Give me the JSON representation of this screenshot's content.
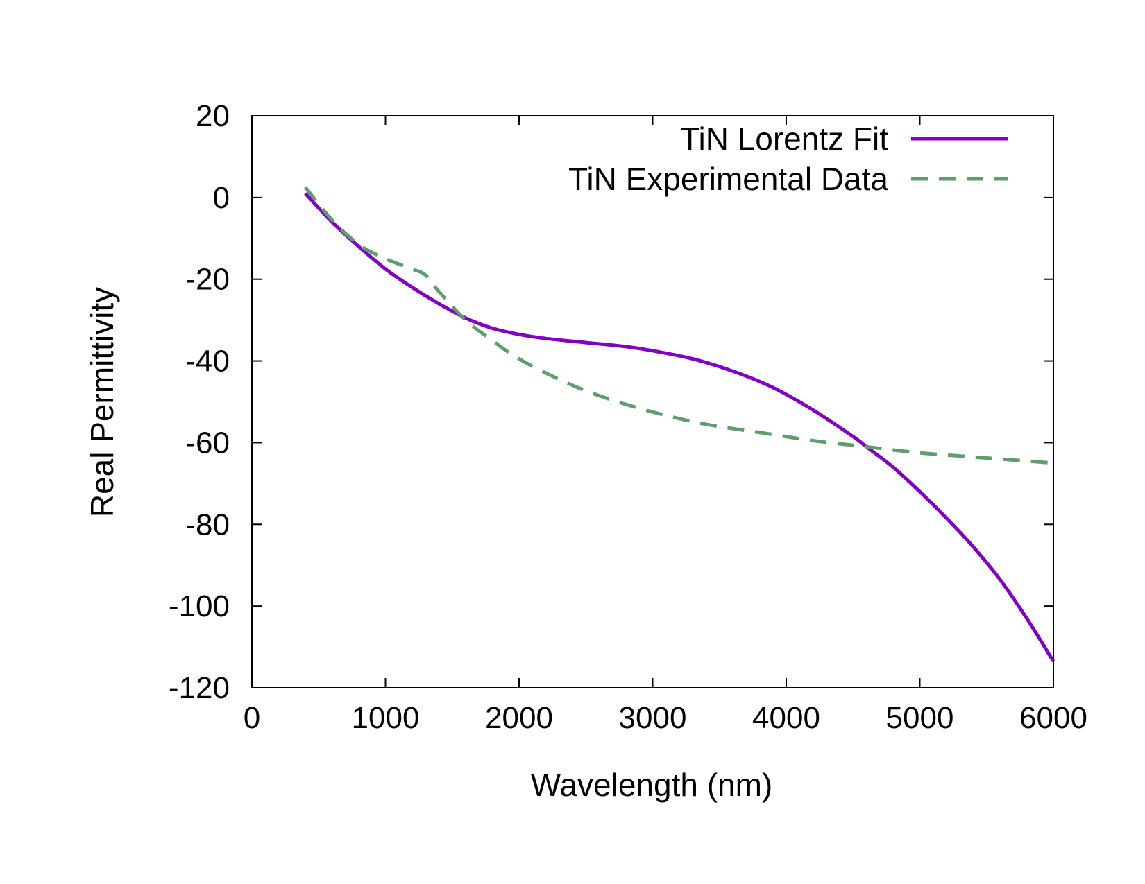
{
  "chart_data": {
    "type": "line",
    "xlabel": "Wavelength (nm)",
    "ylabel": "Real Permittivity",
    "xlim": [
      0,
      6000
    ],
    "ylim": [
      -120,
      20
    ],
    "x_ticks": [
      0,
      1000,
      2000,
      3000,
      4000,
      5000,
      6000
    ],
    "y_ticks": [
      20,
      0,
      -20,
      -40,
      -60,
      -80,
      -100,
      -120
    ],
    "grid": false,
    "legend_position": "top-right",
    "series": [
      {
        "name": "TiN Lorentz Fit",
        "color": "#8000c8",
        "style": "solid",
        "x": [
          400,
          600,
          800,
          1000,
          1200,
          1400,
          1600,
          1800,
          2000,
          2200,
          2500,
          2800,
          3000,
          3300,
          3600,
          3900,
          4200,
          4500,
          4600,
          4800,
          5000,
          5200,
          5400,
          5600,
          5800,
          6000
        ],
        "y": [
          1,
          -6,
          -12,
          -17.5,
          -22,
          -26,
          -29.5,
          -32,
          -33.5,
          -34.5,
          -35.5,
          -36.5,
          -37.5,
          -39.5,
          -42.5,
          -46.5,
          -52,
          -58.5,
          -61,
          -66,
          -72,
          -78.5,
          -85.5,
          -93.5,
          -103,
          -113.5
        ]
      },
      {
        "name": "TiN Experimental Data",
        "color": "#5e9e6e",
        "style": "dashed",
        "x": [
          400,
          600,
          800,
          1000,
          1200,
          1300,
          1400,
          1600,
          1800,
          2000,
          2300,
          2600,
          3000,
          3400,
          3800,
          4200,
          4600,
          5000,
          5400,
          5800,
          6000
        ],
        "y": [
          2.5,
          -5.5,
          -11.5,
          -15,
          -17.5,
          -19,
          -23,
          -30,
          -35,
          -39.5,
          -44.5,
          -48.5,
          -52.5,
          -55.5,
          -57.5,
          -59.5,
          -61,
          -62.5,
          -63.5,
          -64.5,
          -65
        ]
      }
    ]
  }
}
